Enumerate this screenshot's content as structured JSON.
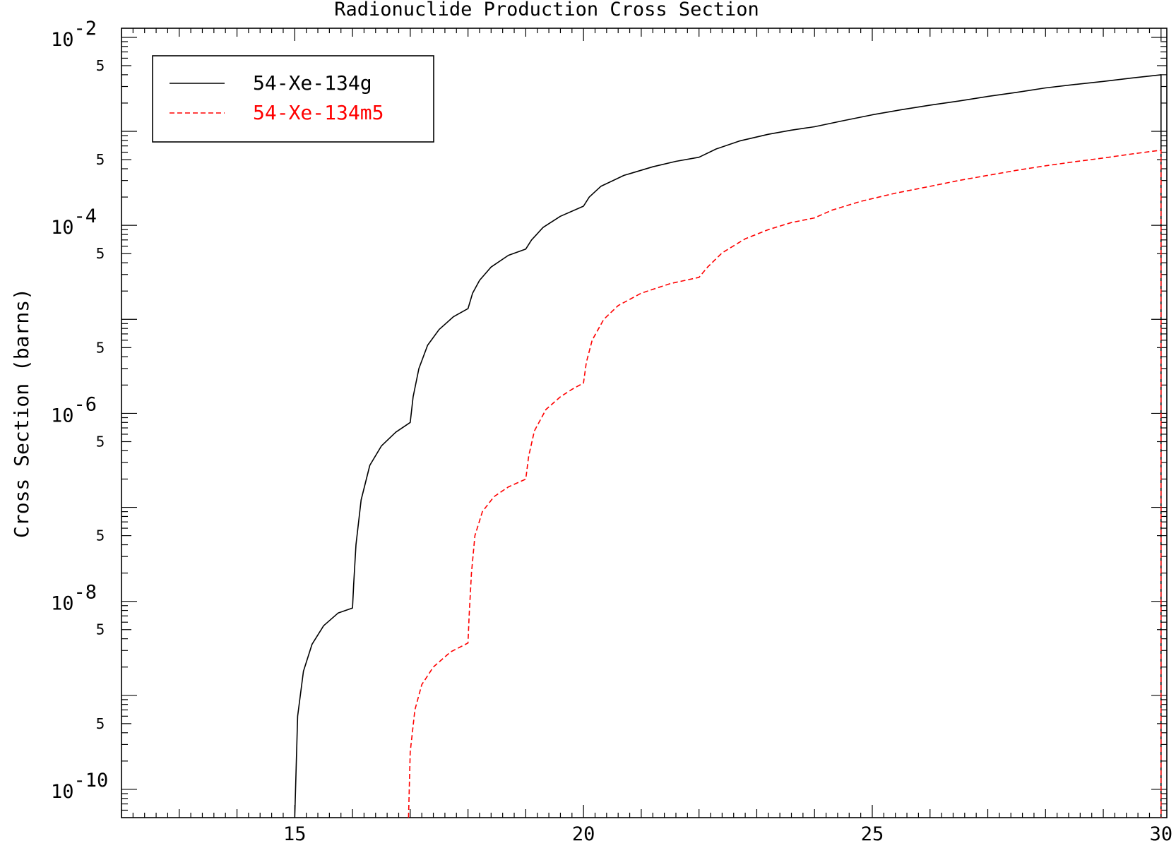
{
  "chart_data": {
    "type": "line",
    "title": "Radionuclide Production Cross Section",
    "xlabel": "",
    "ylabel": "Cross Section (barns)",
    "xlim": [
      12,
      30.1
    ],
    "ylim": [
      5e-11,
      0.0125
    ],
    "yscale": "log",
    "x_ticks": [
      "15",
      "20",
      "25",
      "30"
    ],
    "y_major_ticks": [
      {
        "base": "10",
        "exp": "-2",
        "value": 0.01
      },
      {
        "base": "10",
        "exp": "-4",
        "value": 0.0001
      },
      {
        "base": "10",
        "exp": "-6",
        "value": 1e-06
      },
      {
        "base": "10",
        "exp": "-8",
        "value": 1e-08
      },
      {
        "base": "10",
        "exp": "-10",
        "value": 1e-10
      }
    ],
    "y_minor_label": "5",
    "y_minor_values": [
      0.005,
      0.0005,
      5e-05,
      5e-06,
      5e-07,
      5e-08,
      5e-09,
      5e-10
    ],
    "legend_position": "top-left",
    "series": [
      {
        "name": "54-Xe-134g",
        "color": "#000000",
        "dash": "solid",
        "points": [
          [
            15.0,
            5e-11
          ],
          [
            15.05,
            6e-10
          ],
          [
            15.15,
            1.8e-09
          ],
          [
            15.3,
            3.5e-09
          ],
          [
            15.5,
            5.5e-09
          ],
          [
            15.75,
            7.5e-09
          ],
          [
            16.0,
            8.5e-09
          ],
          [
            16.02,
            1.5e-08
          ],
          [
            16.06,
            4e-08
          ],
          [
            16.15,
            1.2e-07
          ],
          [
            16.3,
            2.8e-07
          ],
          [
            16.5,
            4.5e-07
          ],
          [
            16.75,
            6.3e-07
          ],
          [
            17.0,
            8e-07
          ],
          [
            17.05,
            1.5e-06
          ],
          [
            17.15,
            3e-06
          ],
          [
            17.3,
            5.3e-06
          ],
          [
            17.5,
            7.8e-06
          ],
          [
            17.75,
            1.07e-05
          ],
          [
            18.0,
            1.3e-05
          ],
          [
            18.08,
            1.9e-05
          ],
          [
            18.2,
            2.6e-05
          ],
          [
            18.4,
            3.6e-05
          ],
          [
            18.7,
            4.8e-05
          ],
          [
            19.0,
            5.6e-05
          ],
          [
            19.1,
            7e-05
          ],
          [
            19.3,
            9.5e-05
          ],
          [
            19.6,
            0.000125
          ],
          [
            20.0,
            0.00016
          ],
          [
            20.1,
            0.0002
          ],
          [
            20.3,
            0.00026
          ],
          [
            20.7,
            0.00034
          ],
          [
            21.2,
            0.00042
          ],
          [
            21.6,
            0.00048
          ],
          [
            22.0,
            0.00053
          ],
          [
            22.3,
            0.00065
          ],
          [
            22.7,
            0.00079
          ],
          [
            23.2,
            0.00093
          ],
          [
            23.6,
            0.00103
          ],
          [
            24.0,
            0.00112
          ],
          [
            24.5,
            0.0013
          ],
          [
            25.0,
            0.0015
          ],
          [
            25.5,
            0.0017
          ],
          [
            26.0,
            0.0019
          ],
          [
            26.5,
            0.0021
          ],
          [
            27.0,
            0.00235
          ],
          [
            27.5,
            0.0026
          ],
          [
            28.0,
            0.0029
          ],
          [
            28.5,
            0.00315
          ],
          [
            29.0,
            0.0034
          ],
          [
            29.5,
            0.0037
          ],
          [
            30.0,
            0.004
          ],
          [
            30.0,
            5e-11
          ]
        ]
      },
      {
        "name": "54-Xe-134m5",
        "color": "#ff0000",
        "dash": "dashed",
        "points": [
          [
            16.97,
            5e-11
          ],
          [
            17.0,
            2.5e-10
          ],
          [
            17.08,
            7e-10
          ],
          [
            17.2,
            1.3e-09
          ],
          [
            17.4,
            2e-09
          ],
          [
            17.7,
            2.9e-09
          ],
          [
            18.0,
            3.6e-09
          ],
          [
            18.02,
            7e-09
          ],
          [
            18.06,
            2e-08
          ],
          [
            18.12,
            5e-08
          ],
          [
            18.25,
            9e-08
          ],
          [
            18.45,
            1.3e-07
          ],
          [
            18.7,
            1.65e-07
          ],
          [
            19.0,
            2e-07
          ],
          [
            19.05,
            3.5e-07
          ],
          [
            19.15,
            6.5e-07
          ],
          [
            19.35,
            1.1e-06
          ],
          [
            19.6,
            1.5e-06
          ],
          [
            19.8,
            1.8e-06
          ],
          [
            20.0,
            2.1e-06
          ],
          [
            20.05,
            3.5e-06
          ],
          [
            20.15,
            6e-06
          ],
          [
            20.35,
            1e-05
          ],
          [
            20.6,
            1.4e-05
          ],
          [
            21.0,
            1.9e-05
          ],
          [
            21.5,
            2.4e-05
          ],
          [
            22.0,
            2.8e-05
          ],
          [
            22.15,
            3.6e-05
          ],
          [
            22.4,
            5.1e-05
          ],
          [
            22.8,
            7.2e-05
          ],
          [
            23.2,
            9e-05
          ],
          [
            23.6,
            0.000107
          ],
          [
            24.0,
            0.00012
          ],
          [
            24.3,
            0.000145
          ],
          [
            24.8,
            0.00018
          ],
          [
            25.4,
            0.00022
          ],
          [
            26.0,
            0.00026
          ],
          [
            26.5,
            0.0003
          ],
          [
            27.0,
            0.00034
          ],
          [
            27.5,
            0.000385
          ],
          [
            28.0,
            0.00043
          ],
          [
            28.5,
            0.000475
          ],
          [
            29.0,
            0.00052
          ],
          [
            29.5,
            0.000575
          ],
          [
            30.0,
            0.00063
          ],
          [
            30.0,
            5e-11
          ]
        ]
      }
    ]
  }
}
